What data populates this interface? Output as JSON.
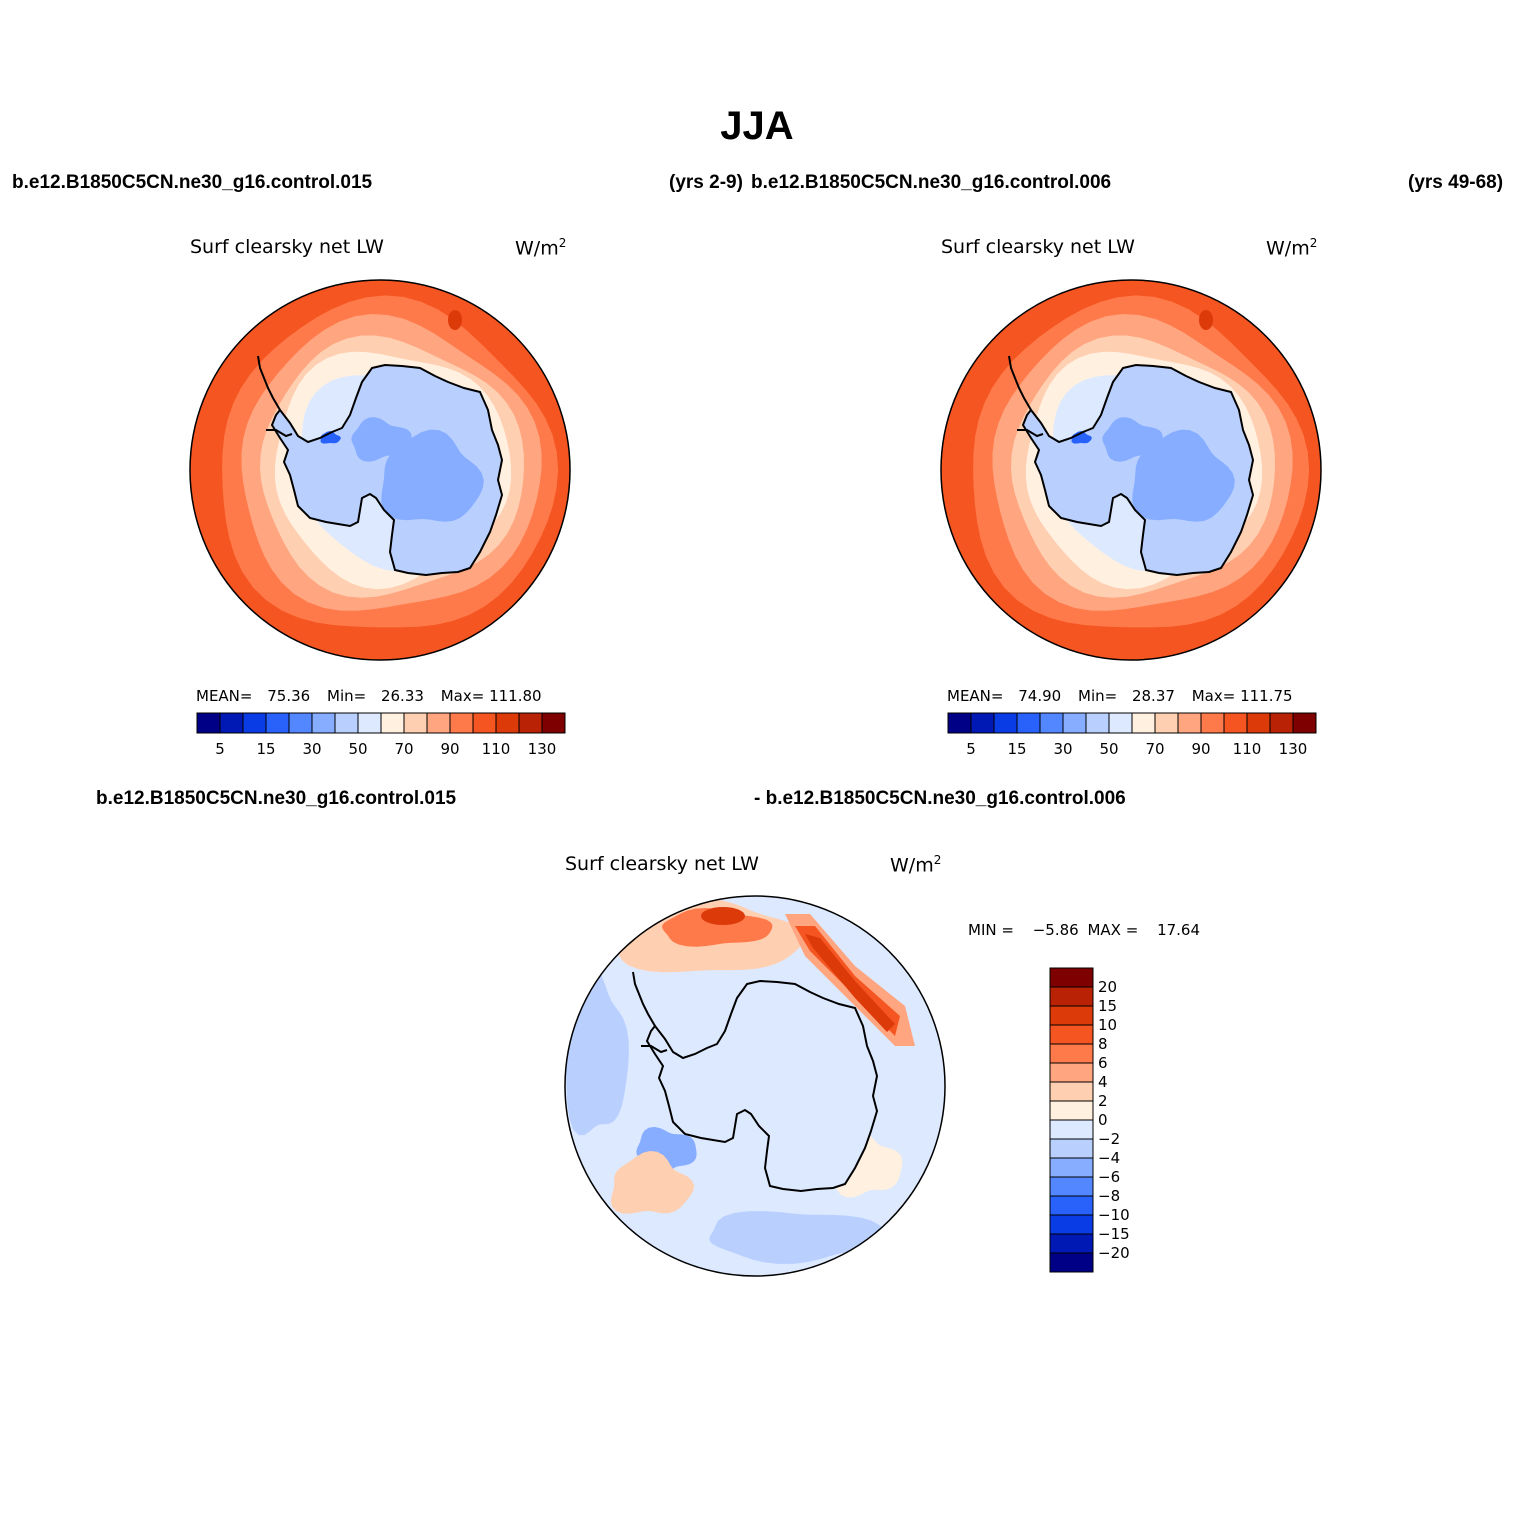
{
  "header": {
    "season": "JJA",
    "case_a": "b.e12.B1850C5CN.ne30_g16.control.015",
    "case_a_years": "(yrs 2-9)",
    "case_b": "b.e12.B1850C5CN.ne30_g16.control.006",
    "case_b_years": "(yrs 49-68)",
    "diff_left": "b.e12.B1850C5CN.ne30_g16.control.015",
    "diff_right": "- b.e12.B1850C5CN.ne30_g16.control.006"
  },
  "chart_data": [
    {
      "type": "heatmap",
      "projection": "south polar stereographic",
      "variable": "Surf clearsky net LW",
      "units": "W/m",
      "units_exp": "2",
      "stats": {
        "mean_label": "MEAN=",
        "mean": "75.36",
        "min_label": "Min=",
        "min": "26.33",
        "max_label": "Max=",
        "max": "111.80"
      },
      "colorbar_ticks": [
        "5",
        "15",
        "30",
        "50",
        "70",
        "90",
        "110",
        "130"
      ],
      "colors": [
        "#000086",
        "#0019b4",
        "#0a3ce6",
        "#2862fa",
        "#5287ff",
        "#86adff",
        "#b9d0ff",
        "#dde9ff",
        "#fff0e0",
        "#ffcfb2",
        "#ffa580",
        "#ff7a4a",
        "#f55520",
        "#dd3a0a",
        "#b92205",
        "#7e0000"
      ]
    },
    {
      "type": "heatmap",
      "projection": "south polar stereographic",
      "variable": "Surf clearsky net LW",
      "units": "W/m",
      "units_exp": "2",
      "stats": {
        "mean_label": "MEAN=",
        "mean": "74.90",
        "min_label": "Min=",
        "min": "28.37",
        "max_label": "Max=",
        "max": "111.75"
      },
      "colorbar_ticks": [
        "5",
        "15",
        "30",
        "50",
        "70",
        "90",
        "110",
        "130"
      ],
      "colors": [
        "#000086",
        "#0019b4",
        "#0a3ce6",
        "#2862fa",
        "#5287ff",
        "#86adff",
        "#b9d0ff",
        "#dde9ff",
        "#fff0e0",
        "#ffcfb2",
        "#ffa580",
        "#ff7a4a",
        "#f55520",
        "#dd3a0a",
        "#b92205",
        "#7e0000"
      ]
    },
    {
      "type": "heatmap",
      "projection": "south polar stereographic",
      "variable": "Surf clearsky net LW",
      "units": "W/m",
      "units_exp": "2",
      "stats": {
        "min_label": "MIN =",
        "min": "−5.86",
        "max_label": "MAX =",
        "max": "17.64"
      },
      "colorbar_ticks": [
        "20",
        "15",
        "10",
        "8",
        "6",
        "4",
        "2",
        "0",
        "−2",
        "−4",
        "−6",
        "−8",
        "−10",
        "−15",
        "−20"
      ],
      "colors": [
        "#7e0000",
        "#b92205",
        "#dd3a0a",
        "#f55520",
        "#ff7a4a",
        "#ffa580",
        "#ffcfb2",
        "#fff0e0",
        "#dde9ff",
        "#b9d0ff",
        "#86adff",
        "#5287ff",
        "#2862fa",
        "#0a3ce6",
        "#0019b4",
        "#000086"
      ]
    }
  ]
}
